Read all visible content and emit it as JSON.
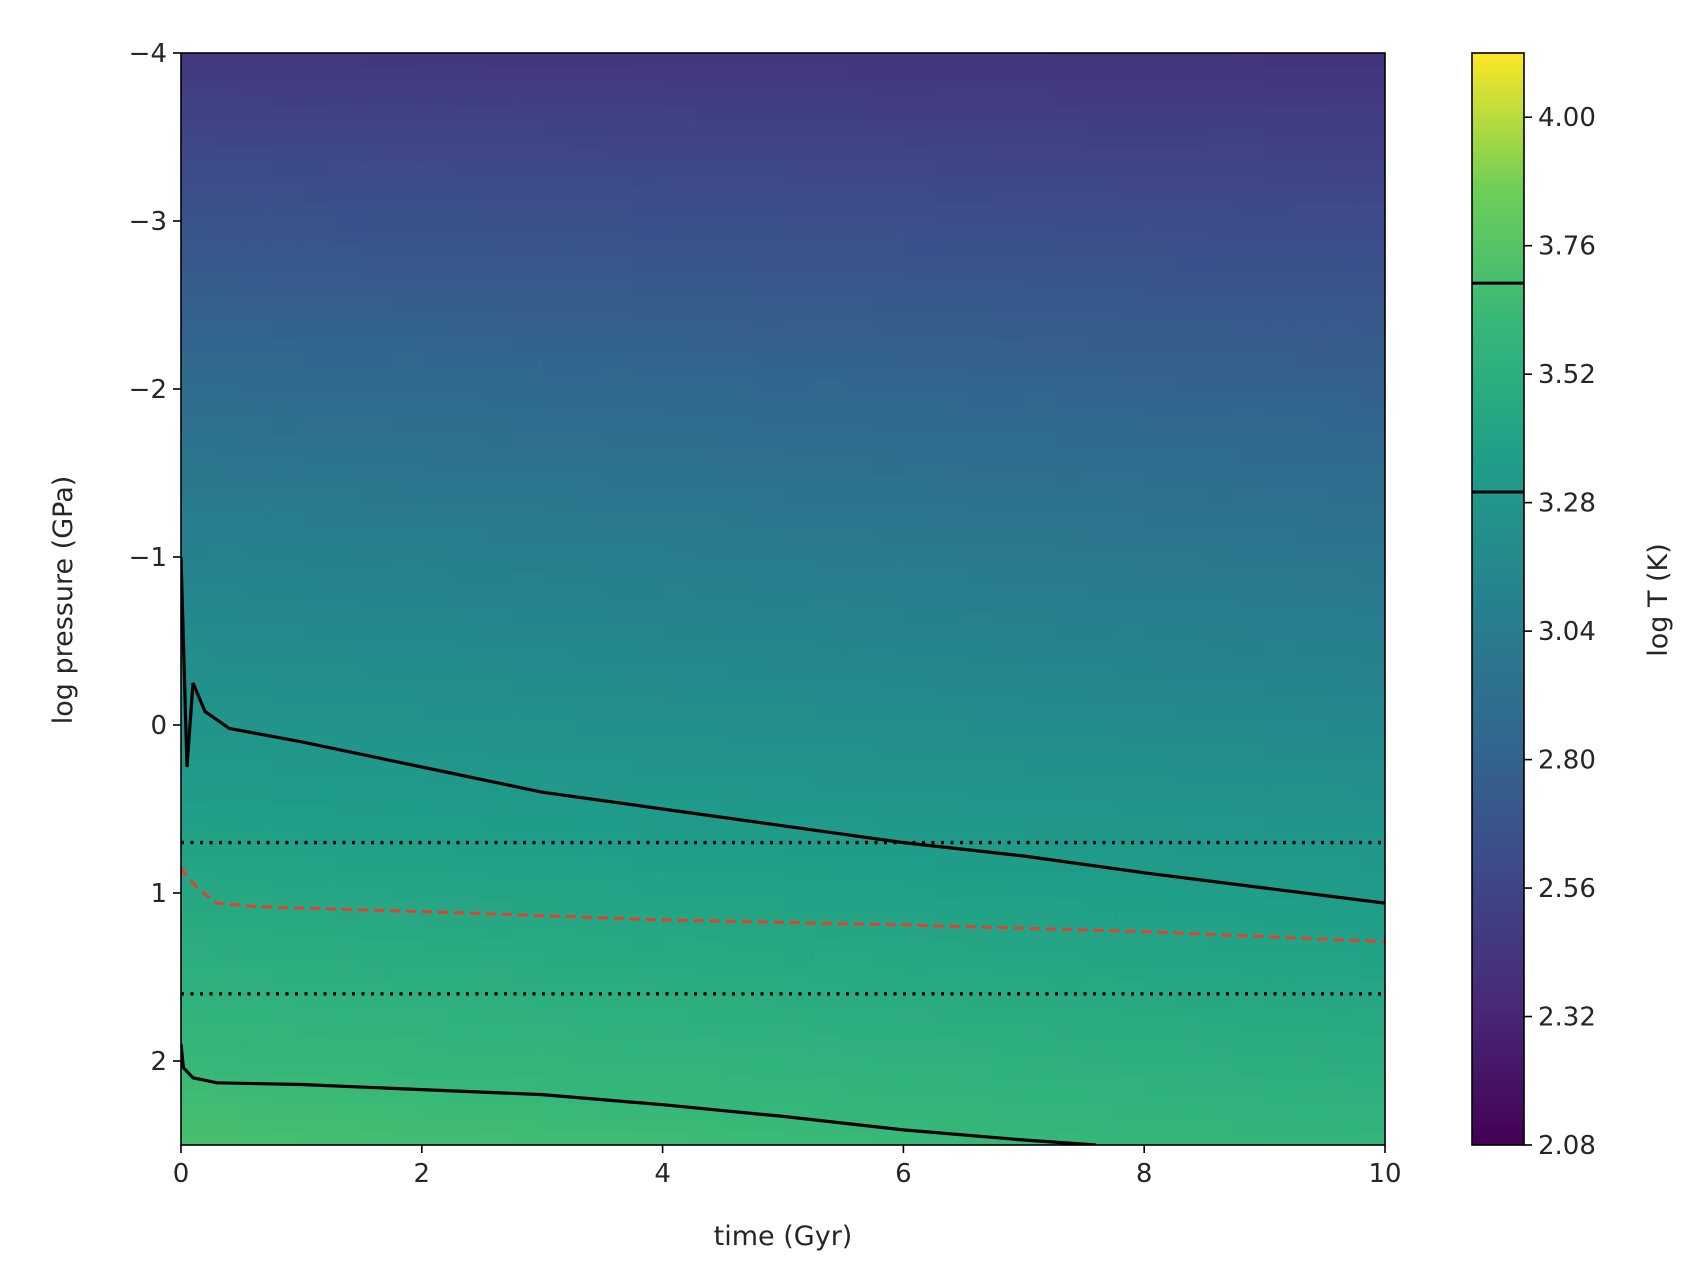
{
  "chart_data": {
    "type": "heatmap",
    "title": "",
    "xlabel": "time (Gyr)",
    "ylabel": "log pressure (GPa)",
    "xlim": [
      0,
      10
    ],
    "ylim": [
      2.5,
      -4
    ],
    "y_inverted": true,
    "x_ticks": [
      "0",
      "2",
      "4",
      "6",
      "8",
      "10"
    ],
    "y_ticks": [
      "−4",
      "−3",
      "−2",
      "−1",
      "0",
      "1",
      "2"
    ],
    "colormap": "viridis",
    "colorbar": {
      "label": "log T (K)",
      "range": [
        2.08,
        4.12
      ],
      "ticks": [
        "2.08",
        "2.32",
        "2.56",
        "2.80",
        "3.04",
        "3.28",
        "3.52",
        "3.76",
        "4.00"
      ],
      "marked_levels": [
        3.3,
        3.69
      ]
    },
    "field_samples": {
      "description_levels": "log T at sample points",
      "points": [
        {
          "t": 0,
          "logP": -4,
          "logT": 2.46
        },
        {
          "t": 10,
          "logP": -4,
          "logT": 2.42
        },
        {
          "t": 0,
          "logP": -1,
          "logT": 3.1
        },
        {
          "t": 10,
          "logP": -1,
          "logT": 2.98
        },
        {
          "t": 0,
          "logP": 1,
          "logT": 3.45
        },
        {
          "t": 10,
          "logP": 1,
          "logT": 3.34
        },
        {
          "t": 0,
          "logP": 2.5,
          "logT": 3.7
        },
        {
          "t": 10,
          "logP": 2.5,
          "logT": 3.58
        }
      ]
    },
    "series": [
      {
        "style": "solid-black",
        "x": [
          0.0,
          0.02,
          0.05,
          0.1,
          0.2,
          0.4,
          1.0,
          2.0,
          3.0,
          4.0,
          5.0,
          6.0,
          7.0,
          8.0,
          9.0,
          10.0
        ],
        "y": [
          -1.0,
          -0.5,
          0.25,
          -0.25,
          -0.08,
          0.02,
          0.1,
          0.25,
          0.4,
          0.5,
          0.6,
          0.7,
          0.78,
          0.88,
          0.97,
          1.06
        ]
      },
      {
        "style": "solid-black",
        "x": [
          0.0,
          0.02,
          0.1,
          0.3,
          1.0,
          2.0,
          3.0,
          4.0,
          5.0,
          6.0,
          7.0,
          7.6
        ],
        "y": [
          1.9,
          2.04,
          2.1,
          2.13,
          2.14,
          2.17,
          2.2,
          2.26,
          2.33,
          2.41,
          2.47,
          2.5
        ]
      },
      {
        "style": "dashed-red",
        "x": [
          0.0,
          0.05,
          0.15,
          0.3,
          0.6,
          1.0,
          2.0,
          4.0,
          6.0,
          8.0,
          10.0
        ],
        "y": [
          0.85,
          0.9,
          0.98,
          1.06,
          1.08,
          1.09,
          1.11,
          1.16,
          1.19,
          1.23,
          1.29
        ]
      },
      {
        "style": "dotted-black",
        "x": [
          0,
          10
        ],
        "y": [
          0.7,
          0.7
        ]
      },
      {
        "style": "dotted-black",
        "x": [
          0,
          10
        ],
        "y": [
          1.6,
          1.6
        ]
      }
    ]
  }
}
